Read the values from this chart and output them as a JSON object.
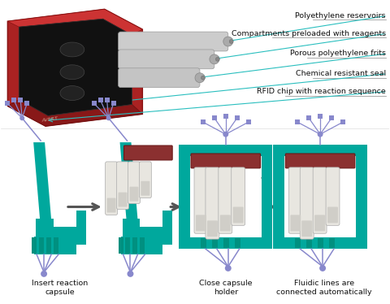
{
  "background_color": "#ffffff",
  "teal": "#00a89d",
  "red_brown": "#8B3030",
  "white_tube": "#e8e6e0",
  "tube_gray": "#d0cec8",
  "bluepurp": "#8888cc",
  "line_color": "#2abfbf",
  "arrow_color": "#555555",
  "annotation_labels": [
    "Polyethylene reservoirs",
    "Compartments preloaded with reagents",
    "Porous polyethylene frits",
    "Chemical resistant seal",
    "RFID chip with reaction sequence"
  ],
  "step_labels": [
    "Insert reaction\ncapsule",
    "Close capsule\nholder",
    "Fluidic lines are\nconnected automatically"
  ],
  "figsize": [
    4.8,
    3.74
  ],
  "dpi": 100
}
